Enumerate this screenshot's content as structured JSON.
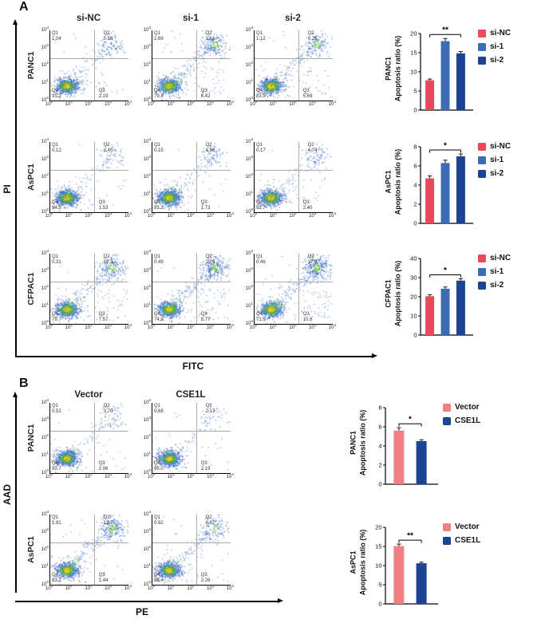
{
  "figure": {
    "log_ticks": [
      "0",
      "1",
      "2",
      "3",
      "4"
    ],
    "panel_a": {
      "label": "A",
      "y_axis_label": "PI",
      "x_axis_label": "FITC",
      "columns": [
        "si-NC",
        "si-1",
        "si-2"
      ],
      "rows": [
        "PANC1",
        "AsPC1",
        "CFPAC1"
      ],
      "flow_plots": [
        [
          {
            "q1": "1.04",
            "q2": "5.58",
            "q3": "2.19",
            "q4": "91.2"
          },
          {
            "q1": "1.69",
            "q2": "12.1",
            "q3": "6.42",
            "q4": "79.8"
          },
          {
            "q1": "1.12",
            "q2": "9.25",
            "q3": "5.69",
            "q4": "83.9"
          }
        ],
        [
          {
            "q1": "0.12",
            "q2": "3.45",
            "q3": "1.53",
            "q4": "94.9"
          },
          {
            "q1": "0.15",
            "q2": "4.96",
            "q3": "1.73",
            "q4": "93.2"
          },
          {
            "q1": "0.17",
            "q2": "4.74",
            "q3": "2.40",
            "q4": "92.7"
          }
        ],
        [
          {
            "q1": "0.31",
            "q2": "12.3",
            "q3": "7.57",
            "q4": "79.7"
          },
          {
            "q1": "0.49",
            "q2": "15.9",
            "q3": "8.77",
            "q4": "74.9"
          },
          {
            "q1": "0.46",
            "q2": "17.9",
            "q3": "10.6",
            "q4": "71.1"
          }
        ]
      ]
    },
    "panel_b": {
      "label": "B",
      "y_axis_label": "AAD",
      "x_axis_label": "PE",
      "columns": [
        "Vector",
        "CSE1L"
      ],
      "rows": [
        "PANC1",
        "AsPC1"
      ],
      "flow_plots": [
        [
          {
            "q1": "0.52",
            "q2": "3.70",
            "q3": "2.06",
            "q4": "93.7"
          },
          {
            "q1": "0.68",
            "q2": "2.17",
            "q3": "2.19",
            "q4": "95.0"
          }
        ],
        [
          {
            "q1": "1.81",
            "q2": "13.7",
            "q3": "1.44",
            "q4": "83.1"
          },
          {
            "q1": "0.92",
            "q2": "8.37",
            "q3": "2.26",
            "q4": "88.4"
          }
        ]
      ]
    }
  },
  "chart_data": [
    {
      "id": "a1",
      "type": "bar",
      "panel": "A",
      "cell_line": "PANC1",
      "ylabel": "Apoptosis ratio (%)",
      "categories": [
        "si-NC",
        "si-1",
        "si-2"
      ],
      "values": [
        7.8,
        18.0,
        14.8
      ],
      "errors": [
        0.3,
        0.7,
        0.5
      ],
      "ylim": [
        0,
        20
      ],
      "yticks": [
        0,
        5,
        10,
        15,
        20
      ],
      "significance": {
        "text": "**",
        "from": 0,
        "to": 2
      },
      "bar_colors": [
        "#e84a5a",
        "#3c6cb4",
        "#1d4394"
      ],
      "legend": [
        {
          "label": "si-NC",
          "color": "#e84a5a"
        },
        {
          "label": "si-1",
          "color": "#3c6cb4"
        },
        {
          "label": "si-2",
          "color": "#1d4394"
        }
      ]
    },
    {
      "id": "a2",
      "type": "bar",
      "panel": "A",
      "cell_line": "AsPC1",
      "ylabel": "Apoptosis ratio (%)",
      "categories": [
        "si-NC",
        "si-1",
        "si-2"
      ],
      "values": [
        4.7,
        6.3,
        7.0
      ],
      "errors": [
        0.25,
        0.3,
        0.25
      ],
      "ylim": [
        0,
        8
      ],
      "yticks": [
        0,
        2,
        4,
        6,
        8
      ],
      "significance": {
        "text": "*",
        "from": 0,
        "to": 2
      },
      "bar_colors": [
        "#e84a5a",
        "#3c6cb4",
        "#1d4394"
      ],
      "legend": [
        {
          "label": "si-NC",
          "color": "#e84a5a"
        },
        {
          "label": "si-1",
          "color": "#3c6cb4"
        },
        {
          "label": "si-2",
          "color": "#1d4394"
        }
      ]
    },
    {
      "id": "a3",
      "type": "bar",
      "panel": "A",
      "cell_line": "CFPAC1",
      "ylabel": "Apoptosis ratio (%)",
      "categories": [
        "si-NC",
        "si-1",
        "si-2"
      ],
      "values": [
        20.3,
        24.2,
        28.4
      ],
      "errors": [
        0.8,
        0.9,
        1.0
      ],
      "ylim": [
        0,
        40
      ],
      "yticks": [
        0,
        10,
        20,
        30,
        40
      ],
      "significance": {
        "text": "*",
        "from": 0,
        "to": 2
      },
      "bar_colors": [
        "#e84a5a",
        "#3c6cb4",
        "#1d4394"
      ],
      "legend": [
        {
          "label": "si-NC",
          "color": "#e84a5a"
        },
        {
          "label": "si-1",
          "color": "#3c6cb4"
        },
        {
          "label": "si-2",
          "color": "#1d4394"
        }
      ]
    },
    {
      "id": "b1",
      "type": "bar",
      "panel": "B",
      "cell_line": "PANC1",
      "ylabel": "Apoptosis ratio (%)",
      "categories": [
        "Vector",
        "CSE1L"
      ],
      "values": [
        5.6,
        4.5
      ],
      "errors": [
        0.3,
        0.15
      ],
      "ylim": [
        0,
        8
      ],
      "yticks": [
        0,
        2,
        4,
        6,
        8
      ],
      "significance": {
        "text": "*",
        "from": 0,
        "to": 1
      },
      "bar_colors": [
        "#f08083",
        "#1d4394"
      ],
      "legend": [
        {
          "label": "Vector",
          "color": "#f08083"
        },
        {
          "label": "CSE1L",
          "color": "#1d4394"
        }
      ]
    },
    {
      "id": "b2",
      "type": "bar",
      "panel": "B",
      "cell_line": "AsPC1",
      "ylabel": "Apoptosis ratio (%)",
      "categories": [
        "Vector",
        "CSE1L"
      ],
      "values": [
        15.1,
        10.6
      ],
      "errors": [
        0.5,
        0.3
      ],
      "ylim": [
        0,
        20
      ],
      "yticks": [
        0,
        5,
        10,
        15,
        20
      ],
      "significance": {
        "text": "**",
        "from": 0,
        "to": 1
      },
      "bar_colors": [
        "#f08083",
        "#1d4394"
      ],
      "legend": [
        {
          "label": "Vector",
          "color": "#f08083"
        },
        {
          "label": "CSE1L",
          "color": "#1d4394"
        }
      ]
    }
  ]
}
